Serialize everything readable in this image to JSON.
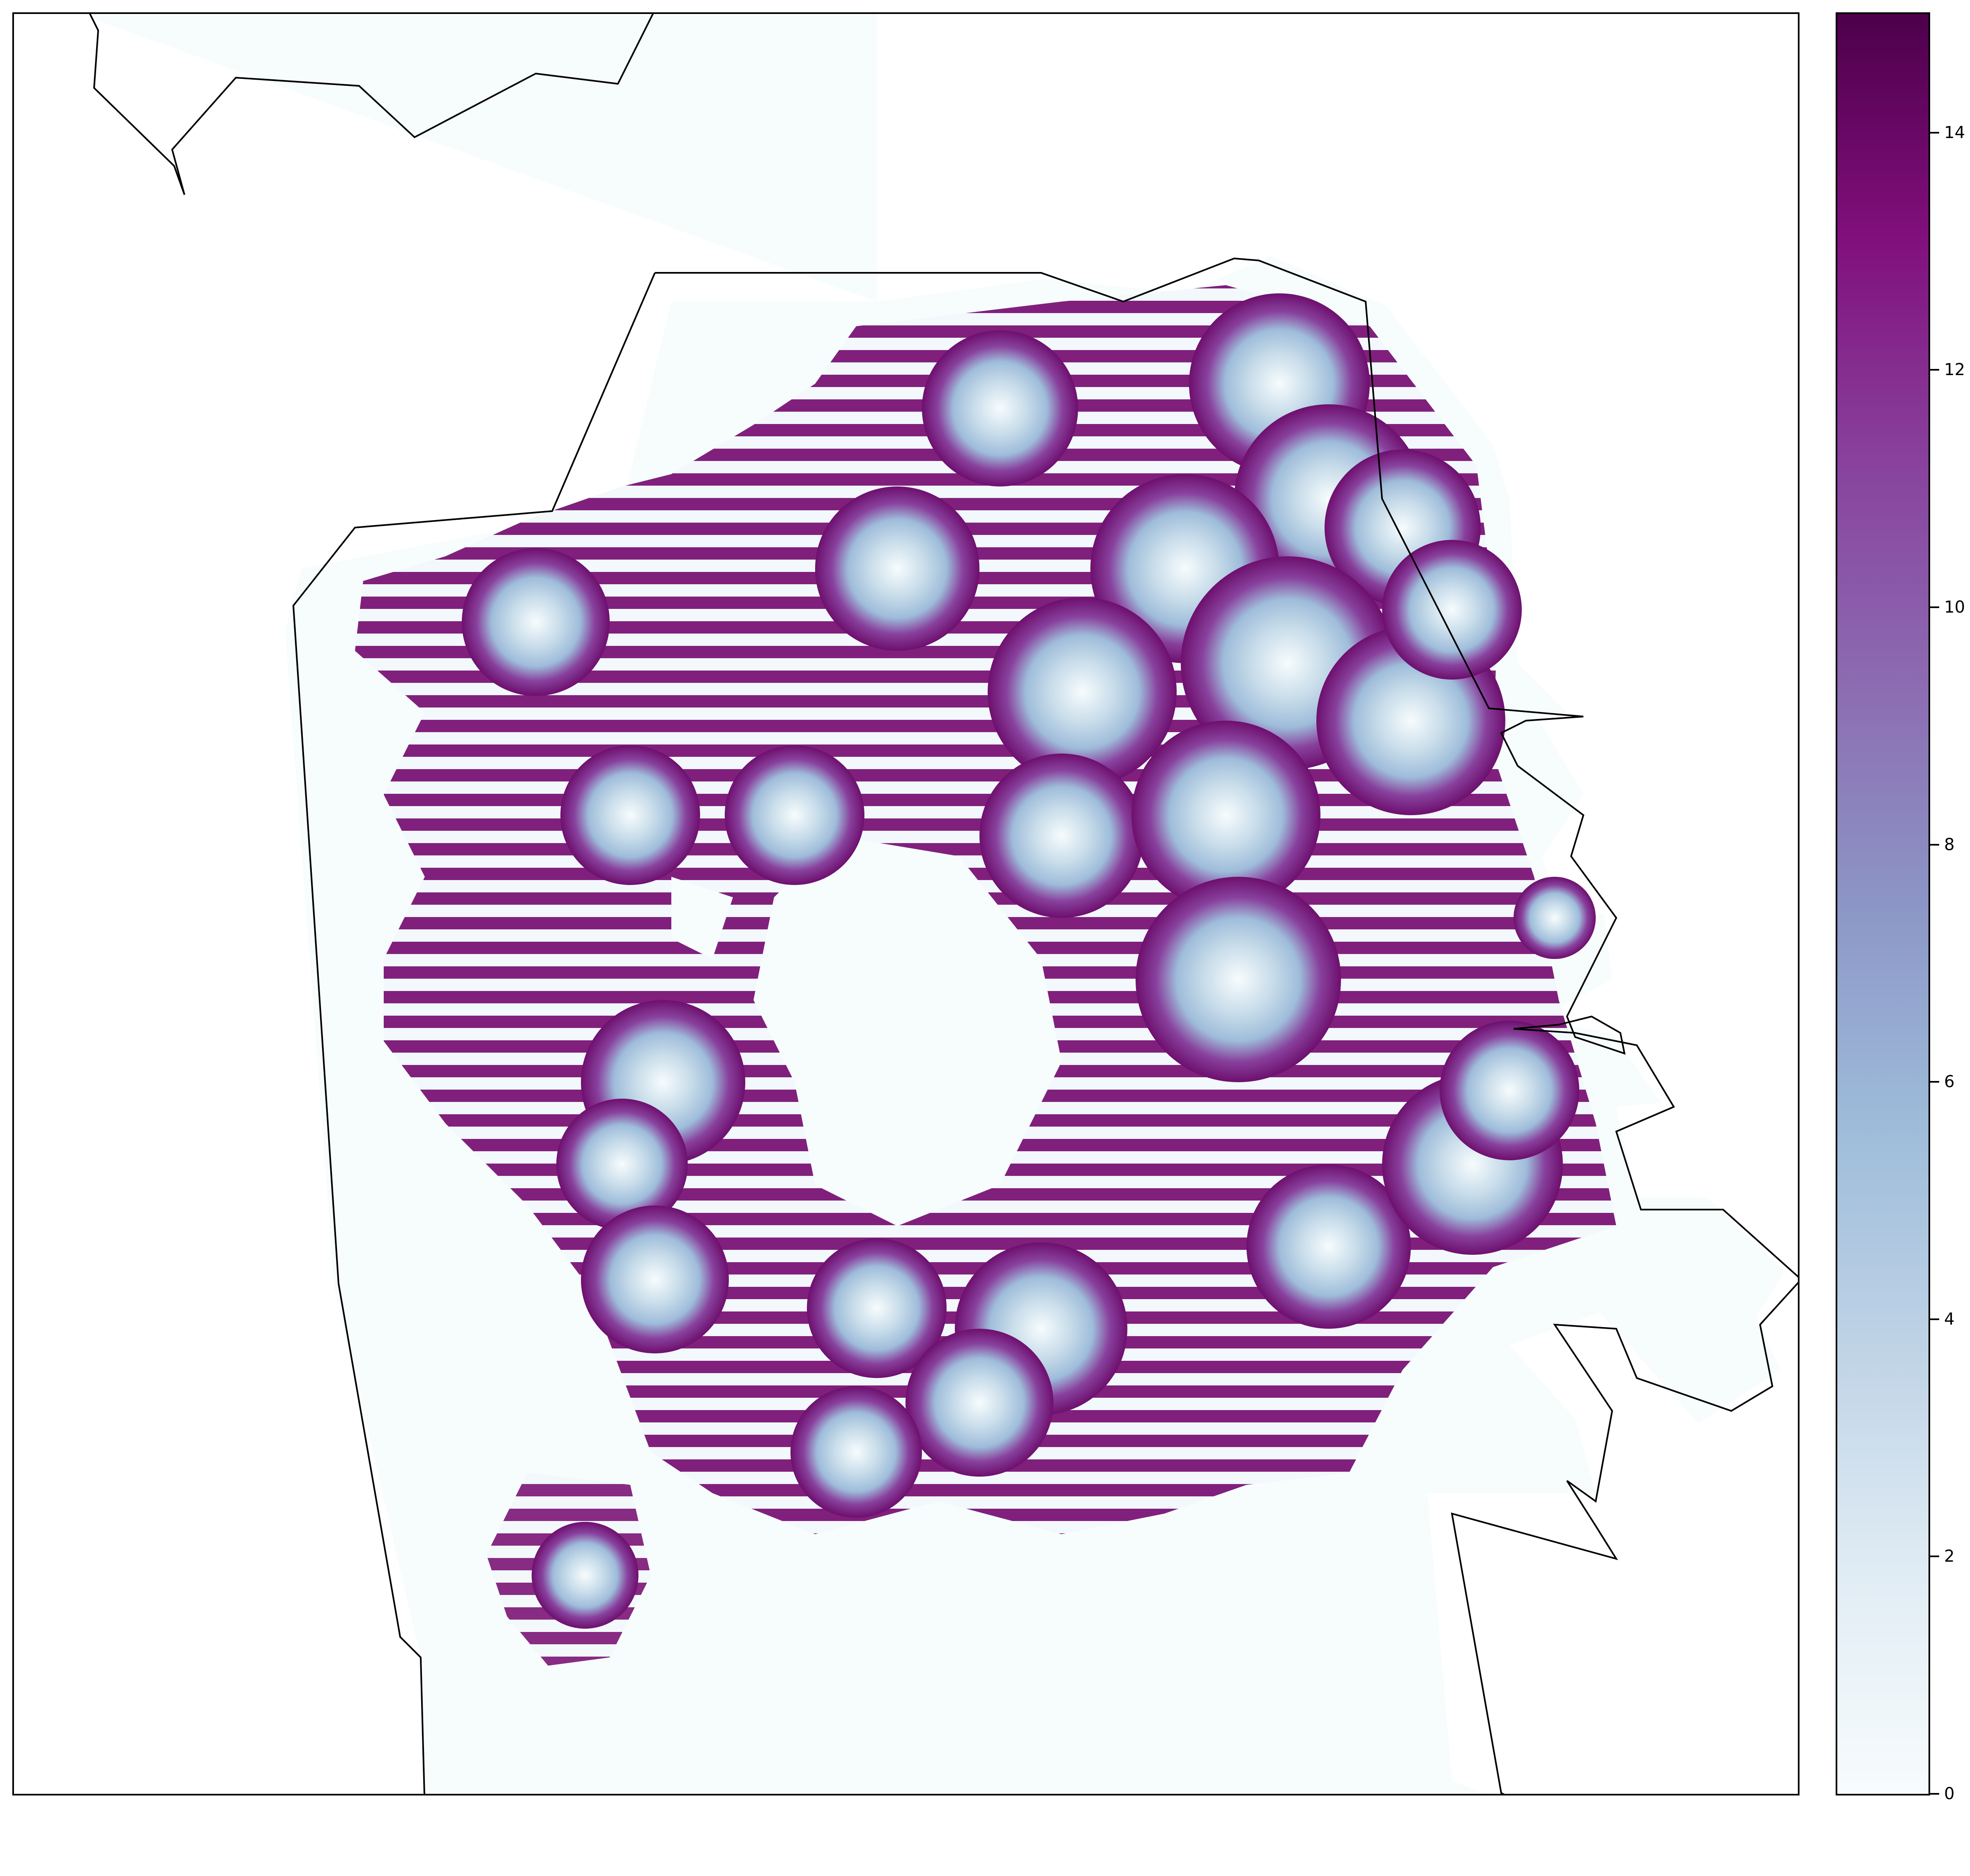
{
  "colorbar": {
    "colormap": "BuPu",
    "min": 0,
    "max": 15,
    "colors": [
      "#f7fcfd",
      "#e0ecf4",
      "#bfd3e6",
      "#9ebcda",
      "#8c96c6",
      "#8c6bb1",
      "#88419d",
      "#810f7c",
      "#4d004b"
    ],
    "ticks": [
      {
        "value": 0,
        "label": "0"
      },
      {
        "value": 2,
        "label": "2"
      },
      {
        "value": 4,
        "label": "4"
      },
      {
        "value": 6,
        "label": "6"
      },
      {
        "value": 8,
        "label": "8"
      },
      {
        "value": 10,
        "label": "10"
      },
      {
        "value": 12,
        "label": "12"
      },
      {
        "value": 14,
        "label": "14"
      }
    ]
  },
  "map": {
    "frame_color": "#000000",
    "background_point_color": "#f4fbfc",
    "boundary_color": "#000000"
  }
}
